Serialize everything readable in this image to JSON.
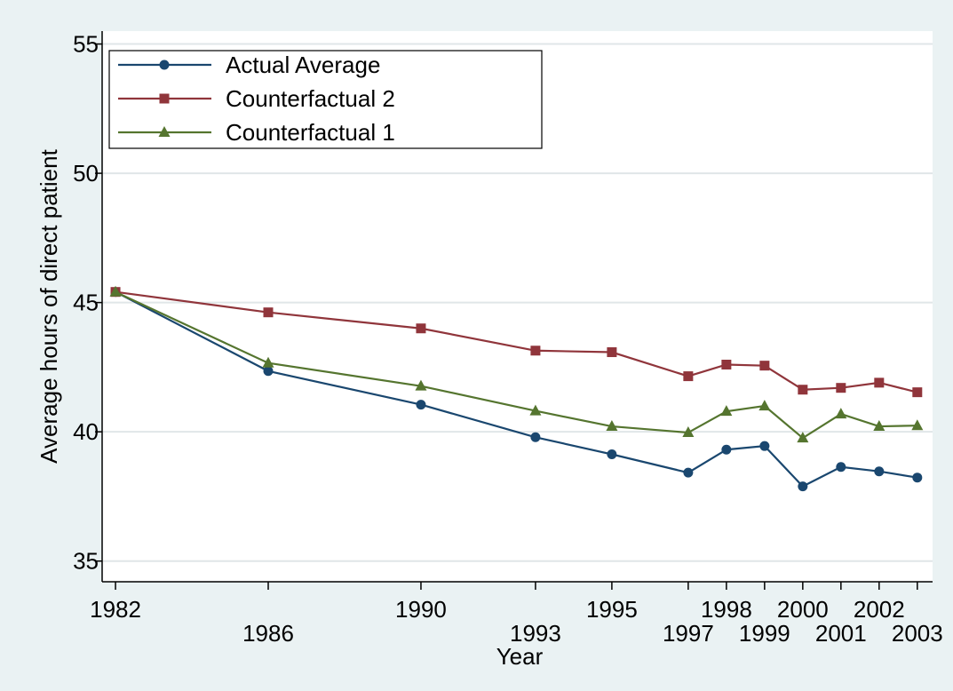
{
  "chart_data": {
    "type": "line",
    "x_label": "Year",
    "y_label": "Average hours of direct patient",
    "x": [
      1982,
      1986,
      1990,
      1993,
      1995,
      1997,
      1998,
      1999,
      2000,
      2001,
      2002,
      2003
    ],
    "series": [
      {
        "name": "Actual Average",
        "color": "#1a476f",
        "marker": "circle",
        "values": [
          45.41,
          42.35,
          41.05,
          39.79,
          39.13,
          38.42,
          39.31,
          39.45,
          37.89,
          38.64,
          38.47,
          38.23
        ]
      },
      {
        "name": "Counterfactual 2",
        "color": "#90353b",
        "marker": "square",
        "values": [
          45.41,
          44.62,
          44.0,
          43.14,
          43.08,
          42.15,
          42.6,
          42.56,
          41.63,
          41.7,
          41.9,
          41.53
        ]
      },
      {
        "name": "Counterfactual 1",
        "color": "#55752f",
        "marker": "triangle",
        "values": [
          45.41,
          42.66,
          41.77,
          40.81,
          40.21,
          39.97,
          40.79,
          41.0,
          39.76,
          40.69,
          40.21,
          40.24
        ]
      }
    ],
    "xlim": [
      1981.65,
      2003.4
    ],
    "ylim": [
      34.2,
      55.5
    ],
    "xticks": [
      1982,
      1986,
      1990,
      1993,
      1995,
      1997,
      1998,
      1999,
      2000,
      2001,
      2002,
      2003
    ],
    "yticks": [
      35,
      40,
      45,
      50,
      55
    ],
    "grid": true,
    "legend_position": "top-left"
  }
}
